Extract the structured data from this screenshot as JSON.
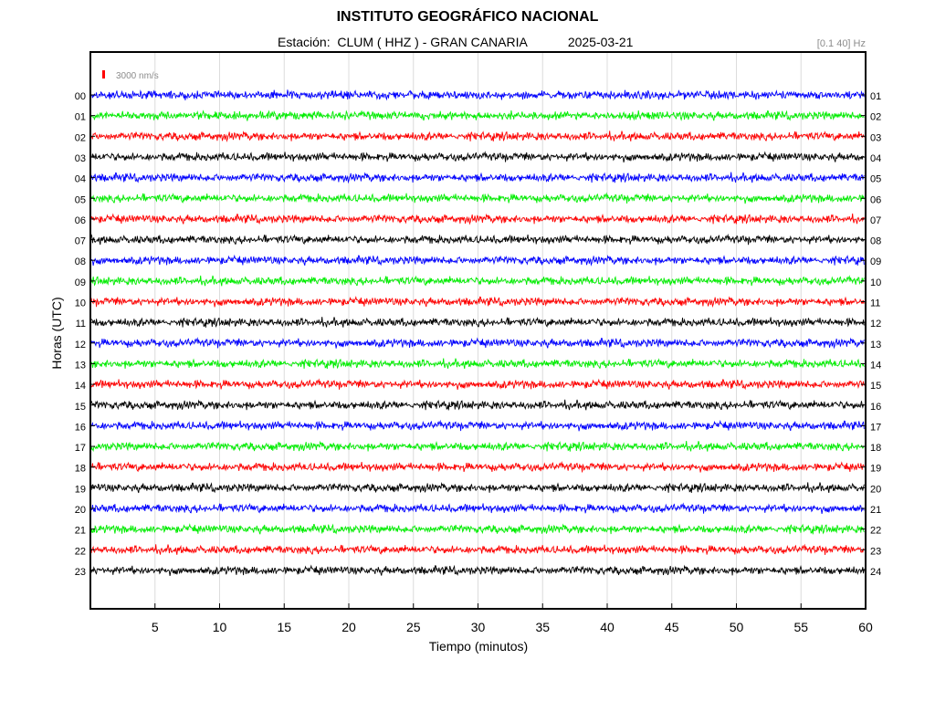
{
  "chart_data": {
    "type": "line",
    "title": "INSTITUTO GEOGRÁFICO NACIONAL",
    "subtitle": {
      "station_label": "Estación:",
      "station": "CLUM ( HHZ ) - GRAN CANARIA",
      "date": "2025-03-21"
    },
    "filter": "[0.1 40] Hz",
    "scale_label": "3000 nm/s",
    "xlabel": "Tiempo (minutos)",
    "ylabel": "Horas (UTC)",
    "xlim": [
      0,
      60
    ],
    "x_ticks": [
      5,
      10,
      15,
      20,
      25,
      30,
      35,
      40,
      45,
      50,
      55,
      60
    ],
    "left_hour_labels": [
      "00",
      "01",
      "02",
      "03",
      "04",
      "05",
      "06",
      "07",
      "08",
      "09",
      "10",
      "11",
      "12",
      "13",
      "14",
      "15",
      "16",
      "17",
      "18",
      "19",
      "20",
      "21",
      "22",
      "23"
    ],
    "right_hour_labels": [
      "01",
      "02",
      "03",
      "04",
      "05",
      "06",
      "07",
      "08",
      "09",
      "10",
      "11",
      "12",
      "13",
      "14",
      "15",
      "16",
      "17",
      "18",
      "19",
      "20",
      "21",
      "22",
      "23",
      "24"
    ],
    "trace_colors": [
      "#0000ff",
      "#00ee00",
      "#ff0000",
      "#000000"
    ],
    "scale_color": "#ff0000",
    "grid": true
  }
}
